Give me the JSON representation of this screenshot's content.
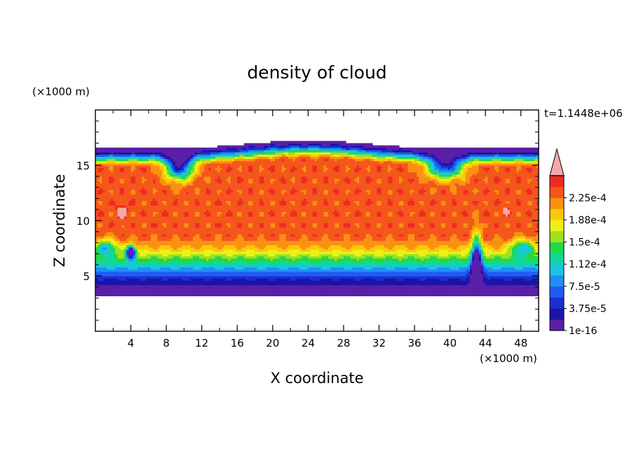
{
  "chart_data": {
    "type": "heatmap",
    "title": "density of cloud",
    "xlabel": "X coordinate",
    "ylabel": "Z coordinate",
    "x_unit": "(×1000 m)",
    "y_unit": "(×1000 m)",
    "time_label": "t=1.1448e+06",
    "xlim": [
      0,
      50
    ],
    "ylim": [
      0,
      20
    ],
    "x_ticks": [
      4,
      8,
      12,
      16,
      20,
      24,
      28,
      32,
      36,
      40,
      44,
      48
    ],
    "y_ticks": [
      5,
      10,
      15
    ],
    "colorbar": {
      "levels": [
        1e-16,
        1.875e-05,
        3.75e-05,
        5.625e-05,
        7.5e-05,
        9.375e-05,
        0.0001125,
        0.00013125,
        0.00015,
        0.00016875,
        0.0001875,
        0.00020625,
        0.000225,
        0.00024375
      ],
      "labels": [
        "1e-16",
        "3.75e-5",
        "7.5e-5",
        "1.12e-4",
        "1.5e-4",
        "1.88e-4",
        "2.25e-4"
      ],
      "colors": [
        "#5a1fa8",
        "#1c14a6",
        "#1a2fd0",
        "#1f5cf2",
        "#1e8ff6",
        "#1cc4e0",
        "#12d6a0",
        "#22d84a",
        "#9ee020",
        "#eef016",
        "#fcc80c",
        "#f99210",
        "#f4561c",
        "#ef2a24"
      ],
      "extend_color": "#f4a7a7"
    },
    "field": {
      "cloud_base_km": 3.3,
      "cloud_top_km": 16.5,
      "core_max": 0.000235,
      "dome_top_x_km": 24,
      "dome_top_km": 17.2,
      "features": [
        "high-density core between z 8.5 and 16 km",
        "gradient decreasing toward cloud base near z 3.5 km",
        "low-density plume near x 8-11 km, z 13-16 km",
        "low-density plume near x 38-42 km, z 13-16 km",
        "low-density blob near x 4 km, z 7 km",
        "low-density column near x 42-44 km, z 4-9 km",
        "isolated peak values near x 3 km, z 11 km and x 46 km, z 11 km"
      ]
    }
  }
}
